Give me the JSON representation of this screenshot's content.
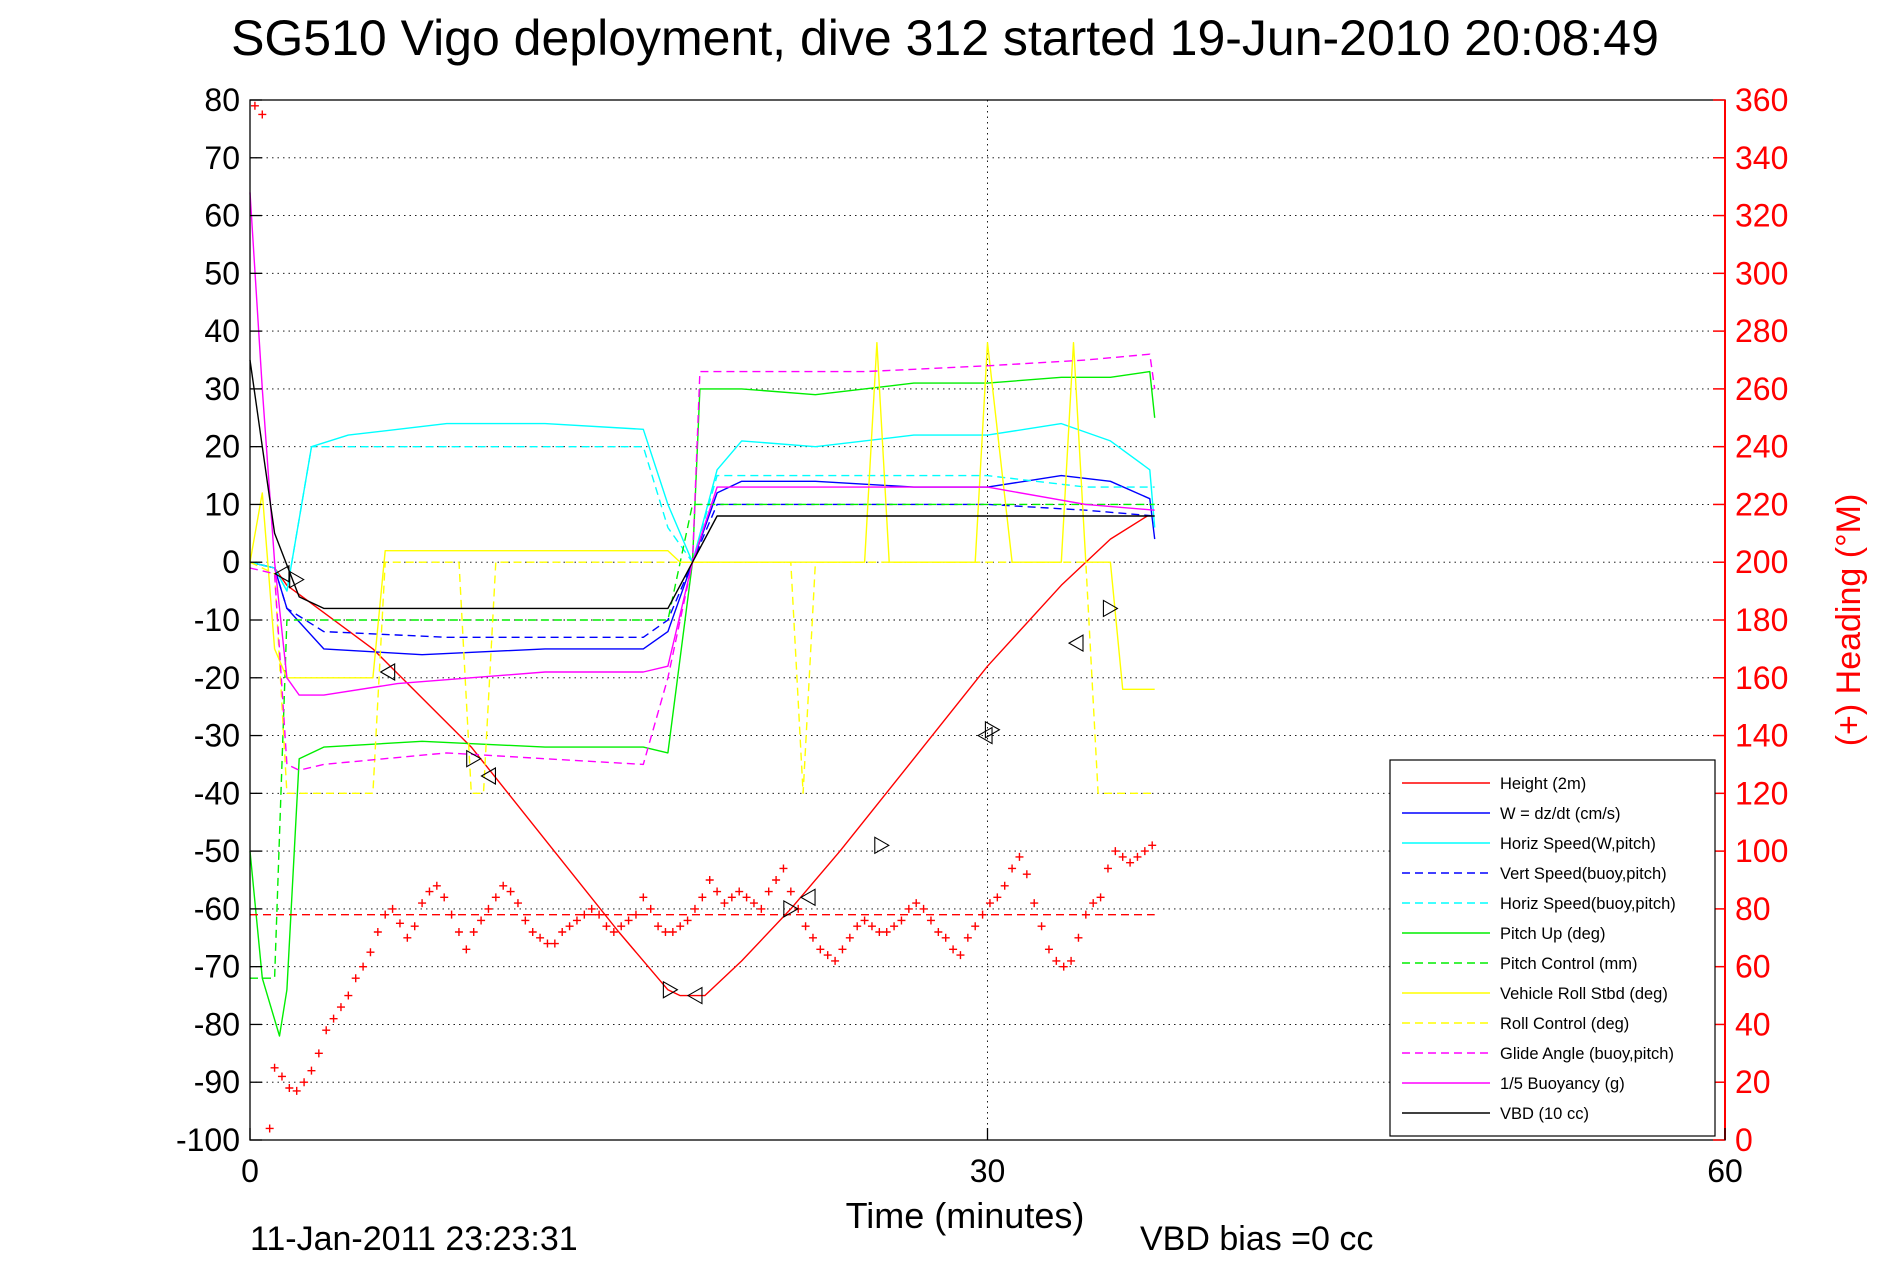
{
  "chart_data": {
    "type": "line",
    "title": "SG510 Vigo deployment, dive 312 started 19-Jun-2010 20:08:49",
    "xlabel": "Time (minutes)",
    "ylabel": "",
    "ylabel_right": "(+) Heading (°M)",
    "xlim": [
      0,
      60
    ],
    "ylim": [
      -100,
      80
    ],
    "ylim_right": [
      0,
      360
    ],
    "x_ticks": [
      "0",
      "30",
      "60"
    ],
    "y_ticks": [
      "80",
      "70",
      "60",
      "50",
      "40",
      "30",
      "20",
      "10",
      "0",
      "-10",
      "-20",
      "-30",
      "-40",
      "-50",
      "-60",
      "-70",
      "-80",
      "-90",
      "-100"
    ],
    "y_right_ticks": [
      "360",
      "340",
      "320",
      "300",
      "280",
      "260",
      "240",
      "220",
      "200",
      "180",
      "160",
      "140",
      "120",
      "100",
      "80",
      "60",
      "40",
      "20",
      "0"
    ],
    "grid": true,
    "legend_position": "bottom-right",
    "footer_left": "11-Jan-2011 23:23:31",
    "footer_right": "VBD bias =0 cc",
    "series": [
      {
        "name": "Height (2m)",
        "color": "#ff0000",
        "style": "solid",
        "x": [
          0,
          1,
          1.5,
          5,
          9,
          12,
          15,
          17,
          17.5,
          18.5,
          20,
          22,
          24,
          27,
          30,
          33,
          35,
          36.5
        ],
        "y": [
          0,
          -1,
          -4,
          -15,
          -32,
          -48,
          -64,
          -74,
          -75,
          -75,
          -69,
          -60,
          -50,
          -34,
          -18,
          -4,
          4,
          8
        ]
      },
      {
        "name": "W = dz/dt (cm/s)",
        "color": "#0000ff",
        "style": "solid",
        "x": [
          0,
          1,
          1.5,
          3,
          7,
          12,
          16,
          17,
          18,
          19,
          20,
          23,
          27,
          30,
          33,
          35,
          36.6,
          36.8
        ],
        "y": [
          0,
          -1,
          -8,
          -15,
          -16,
          -15,
          -15,
          -12,
          0,
          12,
          14,
          14,
          13,
          13,
          15,
          14,
          11,
          4
        ]
      },
      {
        "name": "Horiz Speed(W,pitch)",
        "color": "#00ffff",
        "style": "solid",
        "x": [
          0,
          1,
          1.5,
          2.5,
          4,
          8,
          12,
          16,
          17,
          18,
          19,
          20,
          23,
          27,
          30,
          33,
          35,
          36.6,
          36.8
        ],
        "y": [
          0,
          -1,
          -5,
          20,
          22,
          24,
          24,
          23,
          10,
          0,
          16,
          21,
          20,
          22,
          22,
          24,
          21,
          16,
          6
        ]
      },
      {
        "name": "Vert Speed(buoy,pitch)",
        "color": "#0000ff",
        "style": "dashed",
        "x": [
          0,
          1,
          1.5,
          3,
          8,
          12,
          16,
          17,
          18,
          19,
          20,
          25,
          30,
          34,
          36.8
        ],
        "y": [
          0,
          -1,
          -8,
          -12,
          -13,
          -13,
          -13,
          -10,
          0,
          10,
          10,
          10,
          10,
          9,
          8
        ]
      },
      {
        "name": "Horiz Speed(buoy,pitch)",
        "color": "#00ffff",
        "style": "dashed",
        "x": [
          0,
          1,
          1.5,
          2.5,
          6,
          10,
          16,
          17,
          18,
          19,
          20,
          25,
          30,
          34,
          36.8
        ],
        "y": [
          0,
          -1,
          -5,
          20,
          20,
          20,
          20,
          6,
          0,
          15,
          15,
          15,
          15,
          13,
          13
        ]
      },
      {
        "name": "Pitch Up (deg)",
        "color": "#00ee00",
        "style": "solid",
        "x": [
          0,
          0.5,
          1.2,
          1.5,
          2,
          3,
          7,
          12,
          16,
          17,
          18,
          18.3,
          20,
          23,
          27,
          30,
          33,
          35,
          36.6,
          36.8
        ],
        "y": [
          -50,
          -72,
          -82,
          -74,
          -34,
          -32,
          -31,
          -32,
          -32,
          -33,
          0,
          30,
          30,
          29,
          31,
          31,
          32,
          32,
          33,
          25
        ]
      },
      {
        "name": "Pitch Control (mm)",
        "color": "#00ee00",
        "style": "dashed",
        "x": [
          0,
          0.3,
          1,
          1.5,
          2,
          3,
          8,
          12,
          16,
          17,
          18,
          19,
          23,
          27,
          30,
          34,
          36.8
        ],
        "y": [
          -72,
          -72,
          -72,
          -10,
          -10,
          -10,
          -10,
          -10,
          -10,
          -10,
          10,
          10,
          10,
          10,
          10,
          10,
          10
        ]
      },
      {
        "name": "Vehicle Roll Stbd (deg)",
        "color": "#ffff00",
        "style": "solid",
        "x": [
          0,
          0.5,
          1,
          1.5,
          2,
          3.5,
          5,
          5.5,
          7,
          9,
          10,
          11,
          12,
          15,
          17,
          17.5,
          18,
          19,
          22,
          25,
          25.5,
          26,
          28,
          29.5,
          30,
          31,
          33,
          33.5,
          34,
          35,
          35.5,
          36,
          36.8
        ],
        "y": [
          0,
          12,
          -15,
          -20,
          -20,
          -20,
          -20,
          2,
          2,
          2,
          2,
          2,
          2,
          2,
          2,
          0,
          0,
          0,
          0,
          0,
          38,
          0,
          0,
          0,
          38,
          0,
          0,
          38,
          0,
          0,
          -22,
          -22,
          -22
        ]
      },
      {
        "name": "Roll Control (deg)",
        "color": "#ffff00",
        "style": "dashed",
        "x": [
          0,
          1,
          1.5,
          5,
          5.5,
          8.5,
          9,
          9.5,
          10,
          16,
          18,
          22,
          22.5,
          23,
          30,
          34,
          34.5,
          35,
          36.8
        ],
        "y": [
          0,
          -2,
          -40,
          -40,
          0,
          0,
          -40,
          -40,
          0,
          0,
          0,
          0,
          -40,
          0,
          0,
          0,
          -40,
          -40,
          -40
        ]
      },
      {
        "name": "Glide Angle (buoy,pitch)",
        "color": "#ff00ff",
        "style": "dashed",
        "x": [
          0,
          1,
          1.5,
          2,
          3,
          8,
          12,
          16,
          17,
          18,
          18.3,
          20,
          25,
          30,
          34,
          36.6,
          36.8
        ],
        "y": [
          -1,
          -2,
          -35,
          -36,
          -35,
          -33,
          -34,
          -35,
          -20,
          0,
          33,
          33,
          33,
          34,
          35,
          36,
          30
        ]
      },
      {
        "name": "1/5 Buoyancy (g)",
        "color": "#ff00ff",
        "style": "solid",
        "x": [
          0,
          0.5,
          1,
          1.5,
          2,
          3,
          6,
          12,
          16,
          17,
          18,
          19,
          25,
          30,
          34,
          36.8
        ],
        "y": [
          64,
          30,
          0,
          -20,
          -23,
          -23,
          -21,
          -19,
          -19,
          -18,
          0,
          13,
          13,
          13,
          10,
          9
        ]
      },
      {
        "name": "VBD (10 cc)",
        "color": "#000000",
        "style": "solid",
        "x": [
          0,
          1,
          2,
          3,
          5,
          10,
          16,
          17,
          18,
          19,
          20,
          25,
          30,
          36.8
        ],
        "y": [
          35,
          5,
          -6,
          -8,
          -8,
          -8,
          -8,
          -8,
          0,
          8,
          8,
          8,
          8,
          8
        ]
      },
      {
        "name": "",
        "color": "#ff0000",
        "style": "dashed",
        "x": [
          0,
          36.8
        ],
        "y_right": [
          78,
          78
        ]
      }
    ],
    "heading_markers": {
      "color": "#ff0000",
      "marker": "+",
      "axis": "right",
      "x": [
        0.2,
        0.5,
        0.8,
        1.0,
        1.3,
        1.6,
        1.9,
        2.2,
        2.5,
        2.8,
        3.1,
        3.4,
        3.7,
        4.0,
        4.3,
        4.6,
        4.9,
        5.2,
        5.5,
        5.8,
        6.1,
        6.4,
        6.7,
        7.0,
        7.3,
        7.6,
        7.9,
        8.2,
        8.5,
        8.8,
        9.1,
        9.4,
        9.7,
        10.0,
        10.3,
        10.6,
        10.9,
        11.2,
        11.5,
        11.8,
        12.1,
        12.4,
        12.7,
        13.0,
        13.3,
        13.6,
        13.9,
        14.2,
        14.5,
        14.8,
        15.1,
        15.4,
        15.7,
        16.0,
        16.3,
        16.6,
        16.9,
        17.2,
        17.5,
        17.8,
        18.1,
        18.4,
        18.7,
        19.0,
        19.3,
        19.6,
        19.9,
        20.2,
        20.5,
        20.8,
        21.1,
        21.4,
        21.7,
        22.0,
        22.3,
        22.6,
        22.9,
        23.2,
        23.5,
        23.8,
        24.1,
        24.4,
        24.7,
        25.0,
        25.3,
        25.6,
        25.9,
        26.2,
        26.5,
        26.8,
        27.1,
        27.4,
        27.7,
        28.0,
        28.3,
        28.6,
        28.9,
        29.2,
        29.5,
        29.8,
        30.1,
        30.4,
        30.7,
        31.0,
        31.3,
        31.6,
        31.9,
        32.2,
        32.5,
        32.8,
        33.1,
        33.4,
        33.7,
        34.0,
        34.3,
        34.6,
        34.9,
        35.2,
        35.5,
        35.8,
        36.1,
        36.4,
        36.7
      ],
      "y_right": [
        358,
        355,
        4,
        25,
        22,
        18,
        17,
        20,
        24,
        30,
        38,
        42,
        46,
        50,
        56,
        60,
        65,
        72,
        78,
        80,
        75,
        70,
        74,
        82,
        86,
        88,
        84,
        78,
        72,
        66,
        72,
        76,
        80,
        84,
        88,
        86,
        82,
        76,
        72,
        70,
        68,
        68,
        72,
        74,
        76,
        78,
        80,
        78,
        74,
        72,
        74,
        76,
        78,
        84,
        80,
        74,
        72,
        72,
        74,
        76,
        80,
        84,
        90,
        86,
        82,
        84,
        86,
        84,
        82,
        80,
        86,
        90,
        94,
        86,
        80,
        74,
        70,
        66,
        64,
        62,
        66,
        70,
        74,
        76,
        74,
        72,
        72,
        74,
        76,
        80,
        82,
        80,
        76,
        72,
        70,
        66,
        64,
        70,
        74,
        78,
        82,
        84,
        88,
        94,
        98,
        92,
        82,
        74,
        66,
        62,
        60,
        62,
        70,
        78,
        82,
        84,
        94,
        100,
        98,
        96,
        98,
        100,
        102
      ]
    },
    "height_markers": {
      "x": [
        1.3,
        1.9,
        5.6,
        9.1,
        9.7,
        17.1,
        18.1,
        22.0,
        22.7,
        25.7,
        29.9,
        30.2,
        33.6,
        35.0
      ],
      "y": [
        -2,
        -3,
        -19,
        -34,
        -37,
        -74,
        -75,
        -60,
        -58,
        -49,
        -30,
        -29,
        -14,
        -8
      ]
    }
  }
}
